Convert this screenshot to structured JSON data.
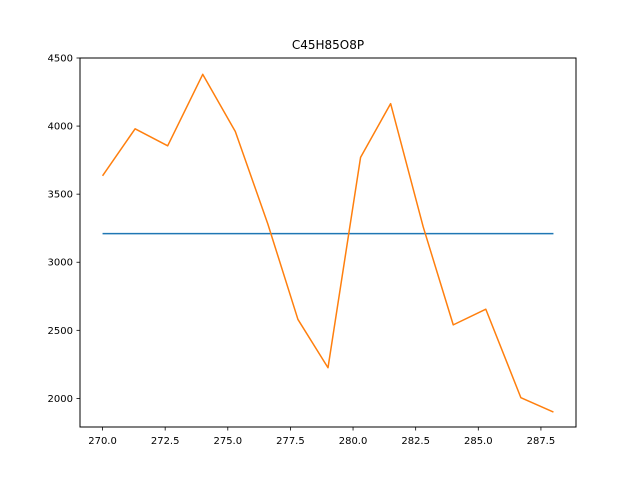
{
  "chart_data": {
    "type": "line",
    "title": "C45H85O8P",
    "xlabel": "",
    "ylabel": "",
    "xlim": [
      269.1,
      288.9
    ],
    "ylim": [
      1790,
      4500
    ],
    "grid": false,
    "xticks": [
      270.0,
      272.5,
      275.0,
      277.5,
      280.0,
      282.5,
      285.0,
      287.5
    ],
    "xtick_labels": [
      "270.0",
      "272.5",
      "275.0",
      "277.5",
      "280.0",
      "282.5",
      "285.0",
      "287.5"
    ],
    "yticks": [
      2000,
      2500,
      3000,
      3500,
      4000,
      4500
    ],
    "ytick_labels": [
      "2000",
      "2500",
      "3000",
      "3500",
      "4000",
      "4500"
    ],
    "series": [
      {
        "color": "#1f77b4",
        "x": [
          270.0,
          288.0
        ],
        "y": [
          3210,
          3210
        ]
      },
      {
        "color": "#ff7f0e",
        "x": [
          270.0,
          271.3,
          272.6,
          274.0,
          275.3,
          276.6,
          277.8,
          279.0,
          280.3,
          281.5,
          282.8,
          284.0,
          285.3,
          286.7,
          288.0
        ],
        "y": [
          3635,
          3980,
          3855,
          4380,
          3960,
          3280,
          2580,
          2225,
          3770,
          4165,
          3260,
          2540,
          2655,
          2005,
          1900
        ]
      }
    ]
  }
}
